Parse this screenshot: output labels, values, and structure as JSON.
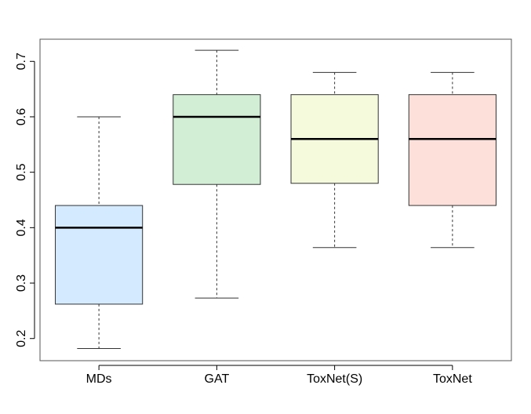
{
  "chart_data": {
    "type": "boxplot",
    "title": "",
    "xlabel": "",
    "ylabel": "",
    "ylim": [
      0.16,
      0.74
    ],
    "yticks": [
      "0.2",
      "0.3",
      "0.4",
      "0.5",
      "0.6",
      "0.7"
    ],
    "grid": false,
    "categories": [
      "MDs",
      "GAT",
      "ToxNet(S)",
      "ToxNet"
    ],
    "boxes": [
      {
        "min": 0.182,
        "q1": 0.262,
        "median": 0.4,
        "q3": 0.44,
        "max": 0.6,
        "color": "#d4eaff"
      },
      {
        "min": 0.273,
        "q1": 0.478,
        "median": 0.6,
        "q3": 0.64,
        "max": 0.72,
        "color": "#d2efd6"
      },
      {
        "min": 0.364,
        "q1": 0.48,
        "median": 0.56,
        "q3": 0.64,
        "max": 0.68,
        "color": "#f6fadc"
      },
      {
        "min": 0.364,
        "q1": 0.44,
        "median": 0.56,
        "q3": 0.64,
        "max": 0.68,
        "color": "#fde0d9"
      }
    ]
  }
}
